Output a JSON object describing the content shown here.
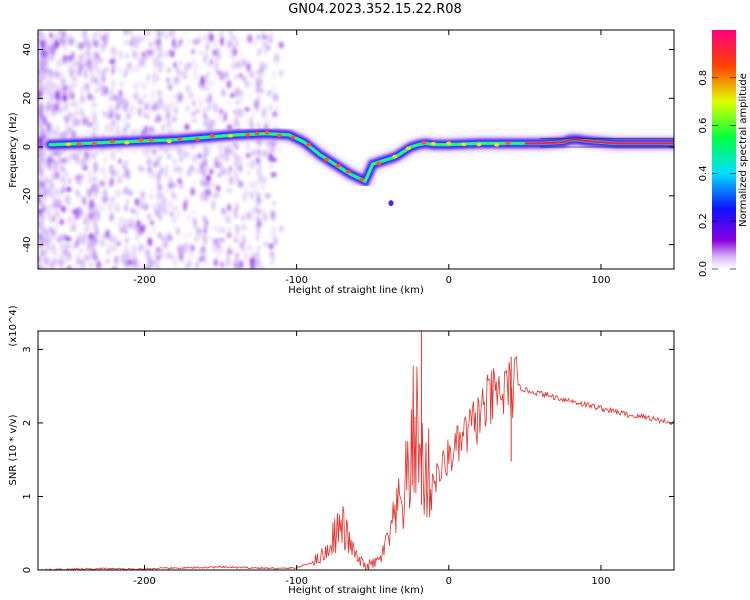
{
  "title": "GN04.2023.352.15.22.R08",
  "chart_data": [
    {
      "type": "heatmap",
      "title": "GN04.2023.352.15.22.R08",
      "xlabel": "Height of straight line (km)",
      "ylabel": "Frequency (Hz)",
      "xlim": [
        -270,
        148
      ],
      "ylim": [
        -50,
        48
      ],
      "xticks": [
        -200,
        -100,
        0,
        100
      ],
      "yticks": [
        -40,
        -20,
        0,
        20,
        40
      ],
      "colorbar": {
        "label": "Normalized spectral amplitude",
        "range": [
          0,
          1
        ],
        "ticks": [
          0.0,
          0.2,
          0.4,
          0.6,
          0.8
        ],
        "colormap": "rainbow (violet-blue-cyan-green-yellow-red-magenta)"
      },
      "ridge": {
        "x": [
          -260,
          -240,
          -220,
          -200,
          -180,
          -160,
          -140,
          -120,
          -105,
          -95,
          -85,
          -75,
          -65,
          -55,
          -50,
          -45,
          -40,
          -35,
          -30,
          -25,
          -20,
          -15,
          -10,
          0,
          20,
          40,
          60,
          75,
          80,
          85,
          90,
          100,
          110,
          148
        ],
        "y": [
          1,
          1.5,
          2,
          2.5,
          3,
          4,
          5,
          5.5,
          5,
          2,
          -3,
          -7,
          -11,
          -14,
          -7,
          -6,
          -5,
          -4,
          -2,
          0,
          1,
          1.5,
          1,
          1,
          1.5,
          1.5,
          1.5,
          2,
          3,
          3,
          2.5,
          2,
          1.5,
          1.5
        ]
      }
    },
    {
      "type": "line",
      "xlabel": "Height of straight line (km)",
      "ylabel": "SNR (10 * v/v)",
      "y_multiplier": "(x10^4)",
      "xlim": [
        -270,
        148
      ],
      "ylim": [
        0,
        3.25
      ],
      "xticks": [
        -200,
        -100,
        0,
        100
      ],
      "yticks": [
        0,
        1,
        2,
        3
      ],
      "color": "#e8312c",
      "series": [
        {
          "x": [
            -270,
            -250,
            -230,
            -210,
            -190,
            -170,
            -150,
            -130,
            -110,
            -100,
            -90,
            -80,
            -75,
            -70,
            -65,
            -60,
            -55,
            -50,
            -45,
            -40,
            -35,
            -30,
            -25,
            -22,
            -20,
            -15,
            -10,
            -5,
            0,
            5,
            10,
            15,
            20,
            25,
            30,
            35,
            40,
            45,
            50,
            60,
            70,
            80,
            90,
            100,
            110,
            120,
            130,
            140,
            148
          ],
          "values": [
            0.0,
            0.01,
            0.02,
            0.01,
            0.02,
            0.03,
            0.04,
            0.03,
            0.02,
            0.03,
            0.1,
            0.25,
            0.5,
            0.6,
            0.35,
            0.15,
            0.05,
            0.08,
            0.15,
            0.4,
            0.7,
            1.0,
            1.4,
            2.2,
            1.6,
            1.3,
            1.2,
            1.35,
            1.55,
            1.65,
            1.8,
            1.95,
            2.1,
            2.25,
            2.35,
            2.4,
            2.45,
            2.5,
            2.45,
            2.4,
            2.35,
            2.3,
            2.25,
            2.2,
            2.15,
            2.1,
            2.08,
            2.03,
            2.0
          ]
        }
      ],
      "peaks": [
        {
          "x": -18,
          "value": 3.25
        },
        {
          "x": 41,
          "value": 2.9
        }
      ]
    }
  ]
}
